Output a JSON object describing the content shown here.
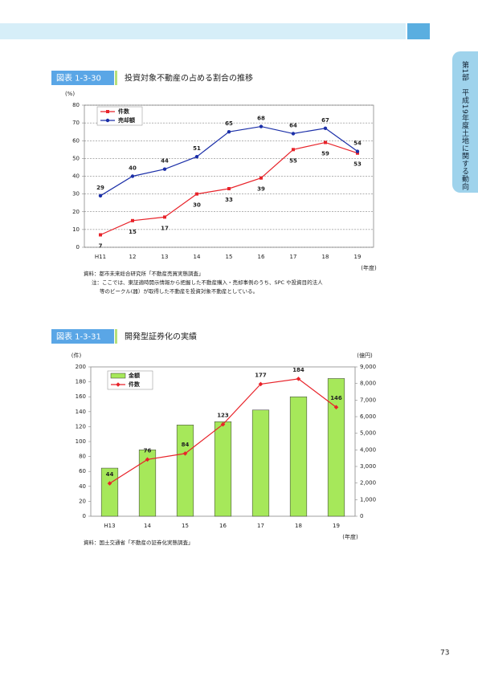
{
  "header": {
    "side_tab": "第1部　平成19年度土地に関する動向",
    "page_number": "73"
  },
  "figures": [
    {
      "label": "図表 1-3-30",
      "title": "投資対象不動産の占める割合の推移",
      "source": "資料：都市未来総合研究所「不動産売買実態調査」",
      "note": "注：ここでは、東証適時開示情報から把握した不動産購入・売却事例のうち、SPC や投資目的法人",
      "note2": "等のビークル(器）が取得した不動産を投資対象不動産としている。"
    },
    {
      "label": "図表 1-3-31",
      "title": "開発型証券化の実績",
      "source": "資料：国土交通省「不動産の証券化実態調査」"
    }
  ],
  "chart_data": [
    {
      "type": "line",
      "y_label": "(%)",
      "x_label": "(年度)",
      "categories": [
        "H11",
        "12",
        "13",
        "14",
        "15",
        "16",
        "17",
        "18",
        "19"
      ],
      "series": [
        {
          "name": "件数",
          "color": "#e8232a",
          "marker": "square",
          "values": [
            7,
            15,
            17,
            30,
            33,
            39,
            55,
            59,
            53
          ]
        },
        {
          "name": "売却額",
          "color": "#1b2fa8",
          "marker": "circle",
          "values": [
            29,
            40,
            44,
            51,
            65,
            68,
            64,
            67,
            54
          ]
        }
      ],
      "ylim": [
        0,
        80
      ],
      "yticks": [
        0,
        10,
        20,
        30,
        40,
        50,
        60,
        70,
        80
      ],
      "grid": true,
      "legend": "upper left"
    },
    {
      "type": "combo",
      "y_label": "(件)",
      "y2_label": "(億円)",
      "x_label": "(年度)",
      "categories": [
        "H13",
        "14",
        "15",
        "16",
        "17",
        "18",
        "19"
      ],
      "series": [
        {
          "name": "金額",
          "type": "bar",
          "axis": "y2",
          "color": "#a6e85a",
          "values": [
            2900,
            4000,
            5500,
            5700,
            6400,
            7200,
            8300
          ]
        },
        {
          "name": "件数",
          "type": "line",
          "color": "#e8232a",
          "marker": "diamond",
          "values": [
            44,
            76,
            84,
            123,
            177,
            184,
            146
          ]
        }
      ],
      "ylim": [
        0,
        200
      ],
      "yticks": [
        0,
        20,
        40,
        60,
        80,
        100,
        120,
        140,
        160,
        180,
        200
      ],
      "y2lim": [
        0,
        9000
      ],
      "y2ticks": [
        0,
        {
          "value": 1000,
          "label": "1,000"
        },
        {
          "value": 2000,
          "label": "2,000"
        },
        {
          "value": 3000,
          "label": "3,000"
        },
        {
          "value": 4000,
          "label": "4,000"
        },
        {
          "value": 5000,
          "label": "5,000"
        },
        {
          "value": 6000,
          "label": "6,000"
        },
        {
          "value": 7000,
          "label": "7,000"
        },
        {
          "value": 8000,
          "label": "8,000"
        },
        {
          "value": 9000,
          "label": "9,000"
        }
      ],
      "grid": false,
      "legend": "upper left"
    }
  ]
}
